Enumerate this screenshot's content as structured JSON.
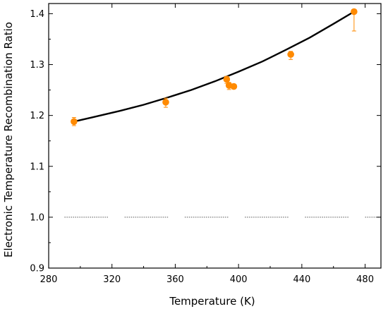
{
  "chart_data": {
    "type": "scatter",
    "xlabel": "Temperature (K)",
    "ylabel": "Electronic Temperature Recombination Ratio",
    "xlim": [
      280,
      490
    ],
    "ylim": [
      0.9,
      1.42
    ],
    "x_ticks": [
      280,
      320,
      360,
      400,
      440,
      480
    ],
    "y_ticks": [
      0.9,
      1.0,
      1.1,
      1.2,
      1.3,
      1.4
    ],
    "x_tick_labels": [
      "280",
      "320",
      "360",
      "400",
      "440",
      "480"
    ],
    "y_tick_labels": [
      "0.9",
      "1.0",
      "1.1",
      "1.2",
      "1.3",
      "1.4"
    ],
    "grid": false,
    "legend": "none",
    "series": [
      {
        "kind": "points",
        "color": "#ff8a00",
        "points": [
          {
            "x": 296,
            "y": 1.188,
            "err_low": 0.008,
            "err_high": 0.008
          },
          {
            "x": 354,
            "y": 1.226,
            "err_low": 0.01,
            "err_high": 0.008
          },
          {
            "x": 392.5,
            "y": 1.271,
            "err_low": 0.008,
            "err_high": 0.006
          },
          {
            "x": 394,
            "y": 1.259,
            "err_low": 0.008,
            "err_high": 0.006
          },
          {
            "x": 397,
            "y": 1.257,
            "err_low": 0.004,
            "err_high": 0.004
          },
          {
            "x": 433,
            "y": 1.32,
            "err_low": 0.01,
            "err_high": 0.006
          },
          {
            "x": 473,
            "y": 1.404,
            "err_low": 0.038,
            "err_high": 0.004
          }
        ]
      },
      {
        "kind": "fit-curve",
        "color": "#000000",
        "x": [
          296,
          310,
          325,
          340,
          355,
          370,
          385,
          400,
          415,
          430,
          445,
          460,
          473
        ],
        "y": [
          1.188,
          1.198,
          1.209,
          1.221,
          1.235,
          1.25,
          1.267,
          1.286,
          1.306,
          1.329,
          1.353,
          1.38,
          1.404
        ]
      },
      {
        "kind": "reference-line",
        "color": "#555555",
        "style": "dotted",
        "y_value": 1.0,
        "segments": [
          [
            290,
            318
          ],
          [
            328,
            356
          ],
          [
            366,
            394
          ],
          [
            404,
            432
          ],
          [
            442,
            470
          ],
          [
            480,
            490
          ]
        ]
      }
    ]
  }
}
